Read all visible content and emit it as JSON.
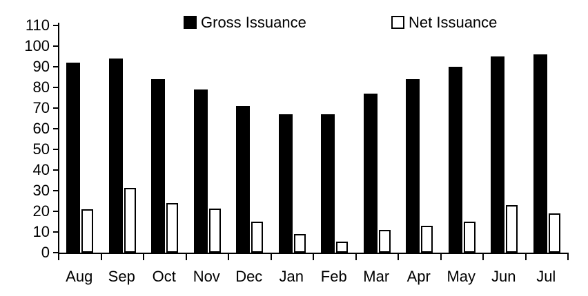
{
  "chart_data": {
    "type": "bar",
    "title": "",
    "categories": [
      "Aug",
      "Sep",
      "Oct",
      "Nov",
      "Dec",
      "Jan",
      "Feb",
      "Mar",
      "Apr",
      "May",
      "Jun",
      "Jul"
    ],
    "series": [
      {
        "name": "Gross Issuance",
        "values": [
          92,
          94,
          84,
          79,
          71,
          67,
          67,
          77,
          84,
          90,
          95,
          96
        ],
        "fill": "#000000",
        "stroke": "#000000"
      },
      {
        "name": "Net Issuance",
        "values": [
          21,
          31.5,
          24,
          21.5,
          15,
          9,
          5.5,
          11,
          13,
          15,
          23,
          19
        ],
        "fill": "#ffffff",
        "stroke": "#000000"
      }
    ],
    "xlabel": "",
    "ylabel": "",
    "ylim": [
      0,
      110
    ],
    "yticks": [
      0,
      10,
      20,
      30,
      40,
      50,
      60,
      70,
      80,
      90,
      100,
      110
    ],
    "grid": false,
    "legend_position": "top"
  },
  "legend": {
    "items": [
      {
        "label": "Gross Issuance",
        "swatch": "filled-black"
      },
      {
        "label": "Net Issuance",
        "swatch": "open-white"
      }
    ]
  },
  "colors": {
    "background": "#ffffff",
    "bar_filled": "#000000",
    "bar_open": "#ffffff",
    "axis": "#000000",
    "text": "#000000"
  }
}
